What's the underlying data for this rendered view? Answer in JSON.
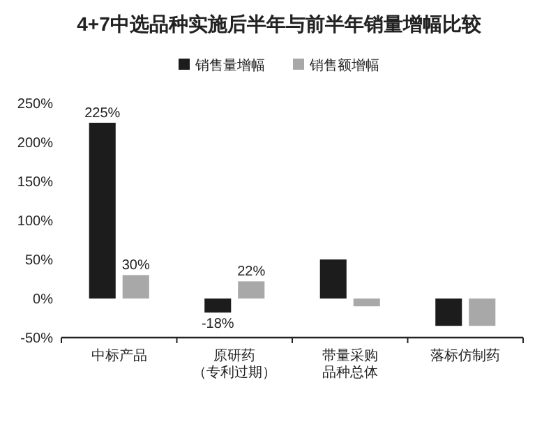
{
  "chart_data": {
    "type": "bar",
    "title": "4+7中选品种实施后半年与前半年销量增幅比较",
    "categories": [
      "中标产品",
      "原研药（专利过期）",
      "带量采购品种总体",
      "落标仿制药"
    ],
    "series": [
      {
        "name": "销售量增幅",
        "color": "#1c1c1c",
        "values": [
          225,
          -18,
          50,
          -35
        ],
        "value_labels": [
          "225%",
          "-18%",
          null,
          null
        ]
      },
      {
        "name": "销售额增幅",
        "color": "#a8a8a8",
        "values": [
          30,
          22,
          -10,
          -35
        ],
        "value_labels": [
          "30%",
          "22%",
          null,
          null
        ]
      }
    ],
    "ylim": [
      -50,
      250
    ],
    "yticks": [
      {
        "value": -50,
        "label": "-50%"
      },
      {
        "value": 0,
        "label": "0%"
      },
      {
        "value": 50,
        "label": "50%"
      },
      {
        "value": 100,
        "label": "100%"
      },
      {
        "value": 150,
        "label": "150%"
      },
      {
        "value": 200,
        "label": "200%"
      },
      {
        "value": 250,
        "label": "250%"
      }
    ],
    "grid": false,
    "legend": "top"
  }
}
